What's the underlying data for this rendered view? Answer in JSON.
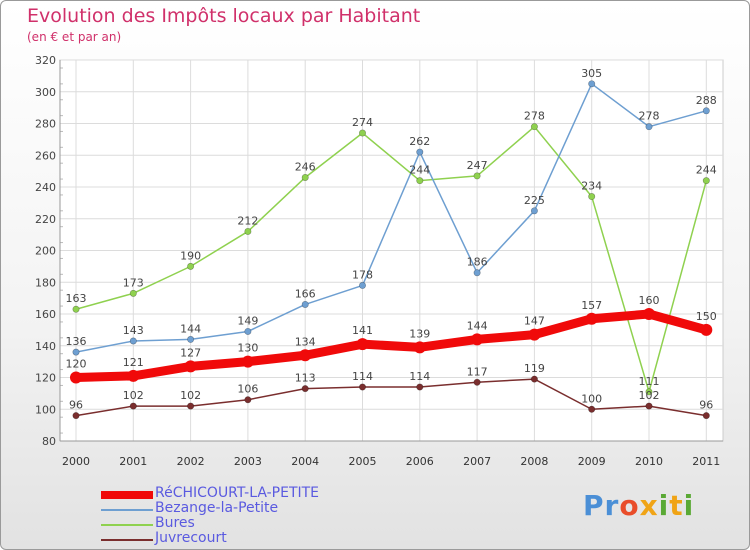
{
  "header": {
    "title": "Evolution des Impôts locaux par Habitant",
    "subtitle": "(en € et par an)"
  },
  "logo": {
    "text": "Proxiti",
    "letters": [
      {
        "ch": "P",
        "color": "#4b8fd6"
      },
      {
        "ch": "r",
        "color": "#4b8fd6"
      },
      {
        "ch": "o",
        "color": "#e94d2a"
      },
      {
        "ch": "x",
        "color": "#f0a416"
      },
      {
        "ch": "i",
        "color": "#5aa935"
      },
      {
        "ch": "t",
        "color": "#f0a416"
      },
      {
        "ch": "i",
        "color": "#5aa935"
      }
    ]
  },
  "chart_data": {
    "type": "line",
    "title": "Evolution des Impôts locaux par Habitant",
    "subtitle": "(en € et par an)",
    "x": [
      "2000",
      "2001",
      "2002",
      "2003",
      "2004",
      "2005",
      "2006",
      "2007",
      "2008",
      "2009",
      "2010",
      "2011"
    ],
    "ylim": [
      80,
      320
    ],
    "yticks": [
      80,
      100,
      120,
      140,
      160,
      180,
      200,
      220,
      240,
      260,
      280,
      300,
      320
    ],
    "grid": true,
    "legend_position": "bottom-left",
    "series": [
      {
        "name": "Bures",
        "color": "#8fd14f",
        "values": [
          163,
          173,
          190,
          212,
          246,
          274,
          244,
          247,
          278,
          234,
          111,
          244
        ]
      },
      {
        "name": "Bezange-la-Petite",
        "color": "#6e9fd1",
        "values": [
          136,
          143,
          144,
          149,
          166,
          178,
          262,
          186,
          225,
          305,
          278,
          288
        ]
      },
      {
        "name": "Juvrecourt",
        "color": "#7a2e2e",
        "values": [
          96,
          102,
          102,
          106,
          113,
          114,
          114,
          117,
          119,
          100,
          102,
          96
        ]
      },
      {
        "name": "RéCHICOURT-LA-PETITE",
        "color": "#f00a0a",
        "values": [
          120,
          121,
          127,
          130,
          134,
          141,
          139,
          144,
          147,
          157,
          160,
          150
        ]
      }
    ],
    "legend": [
      {
        "name": "RéCHICOURT-LA-PETITE",
        "color": "#f00a0a",
        "label_color": "#5a5ae0"
      },
      {
        "name": "Bezange-la-Petite",
        "color": "#6e9fd1",
        "label_color": "#5a5ae0"
      },
      {
        "name": "Bures",
        "color": "#8fd14f",
        "label_color": "#5a5ae0"
      },
      {
        "name": "Juvrecourt",
        "color": "#7a2e2e",
        "label_color": "#5a5ae0"
      }
    ]
  }
}
